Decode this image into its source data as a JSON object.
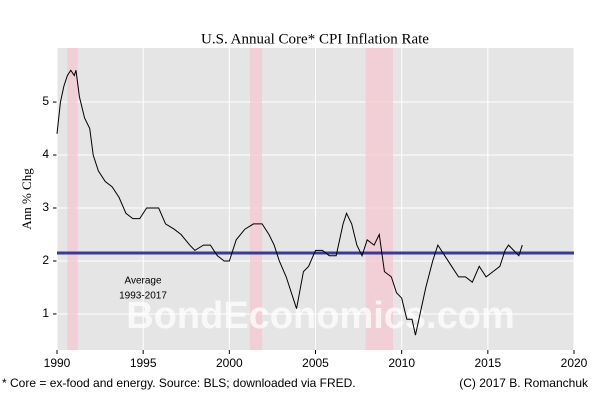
{
  "chart_data": {
    "type": "line",
    "title": "U.S. Annual Core* CPI Inflation Rate",
    "ylabel": "Ann % Chg",
    "footnote": "* Core = ex-food and energy. Source: BLS; downloaded via FRED.",
    "credit": "(C) 2017 B. Romanchuk",
    "watermark": "BondEconomics.com",
    "average": {
      "value": 2.15,
      "label": "Average",
      "period": "1993-2017",
      "color": "#3b3b96"
    },
    "recessions": [
      [
        1990.6,
        1991.2
      ],
      [
        2001.2,
        2001.9
      ],
      [
        2007.9,
        2009.5
      ]
    ],
    "recession_color": "#f5c9d2",
    "xlim": [
      1990,
      2020
    ],
    "xticks": [
      1990,
      1995,
      2000,
      2005,
      2010,
      2015,
      2020
    ],
    "ylim": [
      0.32,
      6.02
    ],
    "yticks": [
      1,
      2,
      3,
      4,
      5
    ],
    "grid": true,
    "series": [
      {
        "name": "Core CPI",
        "color": "#000000",
        "x": [
          1990.0,
          1990.2,
          1990.4,
          1990.6,
          1990.8,
          1991.0,
          1991.1,
          1991.3,
          1991.6,
          1991.9,
          1992.1,
          1992.4,
          1992.8,
          1993.2,
          1993.6,
          1994.0,
          1994.4,
          1994.8,
          1995.2,
          1995.5,
          1995.9,
          1996.3,
          1996.8,
          1997.2,
          1997.7,
          1998.0,
          1998.5,
          1998.9,
          1999.3,
          1999.7,
          2000.0,
          2000.4,
          2000.9,
          2001.4,
          2001.9,
          2002.3,
          2002.6,
          2002.9,
          2003.3,
          2003.7,
          2003.9,
          2004.3,
          2004.6,
          2005.0,
          2005.4,
          2005.8,
          2006.2,
          2006.6,
          2006.8,
          2007.1,
          2007.4,
          2007.7,
          2008.0,
          2008.4,
          2008.7,
          2009.0,
          2009.4,
          2009.7,
          2010.0,
          2010.3,
          2010.6,
          2010.8,
          2011.0,
          2011.4,
          2011.8,
          2012.1,
          2012.5,
          2012.9,
          2013.3,
          2013.7,
          2014.1,
          2014.5,
          2014.9,
          2015.3,
          2015.7,
          2016.0,
          2016.2,
          2016.5,
          2016.8,
          2017.0
        ],
        "values": [
          4.4,
          5.0,
          5.3,
          5.5,
          5.6,
          5.5,
          5.6,
          5.1,
          4.7,
          4.5,
          4.0,
          3.7,
          3.5,
          3.4,
          3.2,
          2.9,
          2.8,
          2.8,
          3.0,
          3.0,
          3.0,
          2.7,
          2.6,
          2.5,
          2.3,
          2.2,
          2.3,
          2.3,
          2.1,
          2.0,
          2.0,
          2.4,
          2.6,
          2.7,
          2.7,
          2.5,
          2.3,
          2.0,
          1.7,
          1.3,
          1.1,
          1.8,
          1.9,
          2.2,
          2.2,
          2.1,
          2.1,
          2.7,
          2.9,
          2.7,
          2.3,
          2.1,
          2.4,
          2.3,
          2.5,
          1.8,
          1.7,
          1.4,
          1.3,
          0.9,
          0.9,
          0.6,
          0.9,
          1.5,
          2.0,
          2.3,
          2.1,
          1.9,
          1.7,
          1.7,
          1.6,
          1.9,
          1.7,
          1.8,
          1.9,
          2.2,
          2.3,
          2.2,
          2.1,
          2.3
        ]
      }
    ]
  }
}
